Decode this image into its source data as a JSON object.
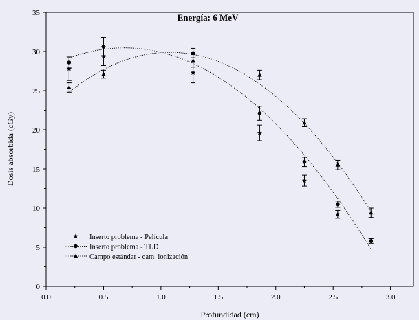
{
  "chart_data": {
    "type": "scatter",
    "title": "Energía: 6 MeV",
    "xlabel": "Profundidad (cm)",
    "ylabel": "Dosis absorbida (cGy)",
    "xlim": [
      0.0,
      3.2
    ],
    "ylim": [
      0,
      35
    ],
    "xticks": [
      "0.0",
      "0.5",
      "1.0",
      "1.5",
      "2.0",
      "2.5",
      "3.0"
    ],
    "yticks": [
      "0",
      "5",
      "10",
      "15",
      "20",
      "25",
      "30",
      "35"
    ],
    "grid": false,
    "legend_position": "bottom-left",
    "series": [
      {
        "name": "Inserto problema - Película",
        "marker": "star",
        "fit_line": false,
        "points": [
          {
            "x": 0.2,
            "y": 27.8,
            "err": 1.5
          },
          {
            "x": 0.5,
            "y": 29.4,
            "err": 1.2
          },
          {
            "x": 1.28,
            "y": 27.3,
            "err": 1.3
          },
          {
            "x": 1.86,
            "y": 19.6,
            "err": 1.0
          },
          {
            "x": 2.25,
            "y": 13.5,
            "err": 0.7
          },
          {
            "x": 2.54,
            "y": 9.2,
            "err": 0.5
          }
        ]
      },
      {
        "name": "Inserto problema - TLD",
        "marker": "circle",
        "fit_line": true,
        "points": [
          {
            "x": 0.2,
            "y": 28.6,
            "err": 0.7
          },
          {
            "x": 0.5,
            "y": 30.6,
            "err": 1.2
          },
          {
            "x": 1.28,
            "y": 29.8,
            "err": 0.6
          },
          {
            "x": 1.86,
            "y": 22.1,
            "err": 0.9
          },
          {
            "x": 2.25,
            "y": 15.9,
            "err": 0.6
          },
          {
            "x": 2.54,
            "y": 10.5,
            "err": 0.4
          },
          {
            "x": 2.83,
            "y": 5.8,
            "err": 0.3
          }
        ]
      },
      {
        "name": "Campo estándar - cam. ionización",
        "marker": "triangle",
        "fit_line": true,
        "points": [
          {
            "x": 0.2,
            "y": 25.4,
            "err": 0.6
          },
          {
            "x": 0.5,
            "y": 27.1,
            "err": 0.5
          },
          {
            "x": 1.28,
            "y": 28.8,
            "err": 0.8
          },
          {
            "x": 1.86,
            "y": 27.0,
            "err": 0.6
          },
          {
            "x": 2.25,
            "y": 20.9,
            "err": 0.5
          },
          {
            "x": 2.54,
            "y": 15.5,
            "err": 0.6
          },
          {
            "x": 2.83,
            "y": 9.4,
            "err": 0.6
          }
        ]
      }
    ]
  }
}
